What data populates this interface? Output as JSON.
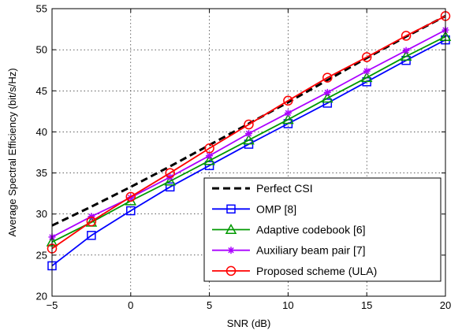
{
  "chart_data": {
    "type": "line",
    "xlabel": "SNR (dB)",
    "ylabel": "Average Spectral Efficiency (bit/s/Hz)",
    "xlim": [
      -5,
      20
    ],
    "ylim": [
      20,
      55
    ],
    "x_ticks": [
      -5,
      0,
      5,
      10,
      15,
      20
    ],
    "y_ticks": [
      20,
      25,
      30,
      35,
      40,
      45,
      50,
      55
    ],
    "x_tick_labels": [
      "−5",
      "0",
      "5",
      "10",
      "15",
      "20"
    ],
    "y_tick_labels": [
      "20",
      "25",
      "30",
      "35",
      "40",
      "45",
      "50",
      "55"
    ],
    "grid": true,
    "legend_position": "bottom-right",
    "x": [
      -5,
      -2.5,
      0,
      2.5,
      5,
      7.5,
      10,
      12.5,
      15,
      17.5,
      20
    ],
    "series": [
      {
        "name": "Perfect CSI",
        "color": "#000000",
        "line_style": "dashed",
        "marker": "none",
        "values": [
          28.6,
          30.9,
          33.3,
          35.8,
          38.4,
          41.0,
          43.6,
          46.3,
          49.0,
          51.6,
          54.1
        ]
      },
      {
        "name": "OMP [8]",
        "color": "#0000ff",
        "line_style": "solid",
        "marker": "square",
        "values": [
          23.7,
          27.4,
          30.4,
          33.3,
          35.9,
          38.5,
          41.0,
          43.5,
          46.1,
          48.7,
          51.2
        ]
      },
      {
        "name": "Adaptive codebook [6]",
        "color": "#009900",
        "line_style": "solid",
        "marker": "triangle",
        "values": [
          26.6,
          29.0,
          31.6,
          34.0,
          36.5,
          39.0,
          41.5,
          44.1,
          46.6,
          49.2,
          51.6
        ]
      },
      {
        "name": "Auxiliary beam pair [7]",
        "color": "#aa00ff",
        "line_style": "solid",
        "marker": "star",
        "values": [
          27.2,
          29.7,
          32.0,
          34.5,
          37.1,
          39.8,
          42.3,
          44.8,
          47.4,
          49.9,
          52.4
        ]
      },
      {
        "name": "Proposed scheme (ULA)",
        "color": "#ff0000",
        "line_style": "solid",
        "marker": "circle",
        "values": [
          25.8,
          29.1,
          32.1,
          35.0,
          38.0,
          40.9,
          43.8,
          46.6,
          49.1,
          51.7,
          54.1
        ]
      }
    ]
  }
}
